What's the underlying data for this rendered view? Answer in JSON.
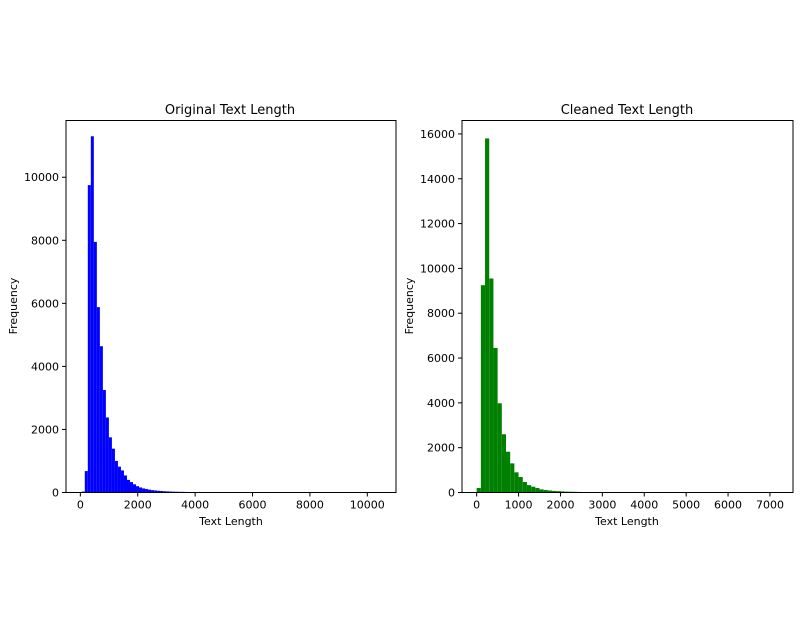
{
  "chart_data": [
    {
      "type": "bar",
      "title": "Original Text Length",
      "xlabel": "Text Length",
      "ylabel": "Frequency",
      "color": "#0000ff",
      "xlim": [
        -500,
        11000
      ],
      "ylim": [
        0,
        11800
      ],
      "xticks": [
        0,
        2000,
        4000,
        6000,
        8000,
        10000
      ],
      "xtick_labels": [
        "0",
        "2000",
        "4000",
        "6000",
        "8000",
        "10000"
      ],
      "yticks": [
        0,
        2000,
        4000,
        6000,
        8000,
        10000
      ],
      "ytick_labels": [
        "0",
        "2000",
        "4000",
        "6000",
        "8000",
        "10000"
      ],
      "grid": false,
      "bin_width": 105,
      "bin_starts": [
        50,
        155,
        260,
        365,
        470,
        575,
        680,
        785,
        890,
        995,
        1100,
        1205,
        1310,
        1415,
        1520,
        1625,
        1730,
        1835,
        1940,
        2045,
        2150,
        2255,
        2360,
        2465,
        2570,
        2675,
        2780,
        2885,
        2990,
        3095,
        3200,
        3305,
        3410,
        3515,
        3620,
        3725,
        3830,
        3935,
        4040,
        4145
      ],
      "values": [
        30,
        680,
        9750,
        11300,
        7950,
        5880,
        4640,
        3250,
        2380,
        1750,
        1390,
        1000,
        820,
        700,
        540,
        400,
        330,
        260,
        200,
        160,
        130,
        110,
        90,
        75,
        65,
        55,
        48,
        40,
        35,
        30,
        27,
        25,
        22,
        20,
        18,
        16,
        14,
        12,
        12,
        10
      ]
    },
    {
      "type": "bar",
      "title": "Cleaned Text Length",
      "xlabel": "Text Length",
      "ylabel": "Frequency",
      "color": "#008000",
      "xlim": [
        -350,
        7550
      ],
      "ylim": [
        0,
        16600
      ],
      "xticks": [
        0,
        1000,
        2000,
        3000,
        4000,
        5000,
        6000,
        7000
      ],
      "xtick_labels": [
        "0",
        "1000",
        "2000",
        "3000",
        "4000",
        "5000",
        "6000",
        "7000"
      ],
      "yticks": [
        0,
        2000,
        4000,
        6000,
        8000,
        10000,
        12000,
        14000,
        16000
      ],
      "ytick_labels": [
        "0",
        "2000",
        "4000",
        "6000",
        "8000",
        "10000",
        "12000",
        "14000",
        "16000"
      ],
      "grid": false,
      "bin_width": 100,
      "bin_starts": [
        0,
        100,
        200,
        300,
        400,
        500,
        600,
        700,
        800,
        900,
        1000,
        1100,
        1200,
        1300,
        1400,
        1500,
        1600,
        1700,
        1800,
        1900,
        2000,
        2100,
        2200,
        2300,
        2400,
        2500,
        2600,
        2700,
        2800,
        2900,
        3000
      ],
      "values": [
        200,
        9250,
        15800,
        9550,
        6450,
        3980,
        2600,
        1820,
        1300,
        900,
        690,
        470,
        330,
        260,
        200,
        140,
        110,
        90,
        70,
        60,
        50,
        40,
        35,
        30,
        25,
        20,
        18,
        15,
        12,
        10,
        8
      ]
    }
  ]
}
